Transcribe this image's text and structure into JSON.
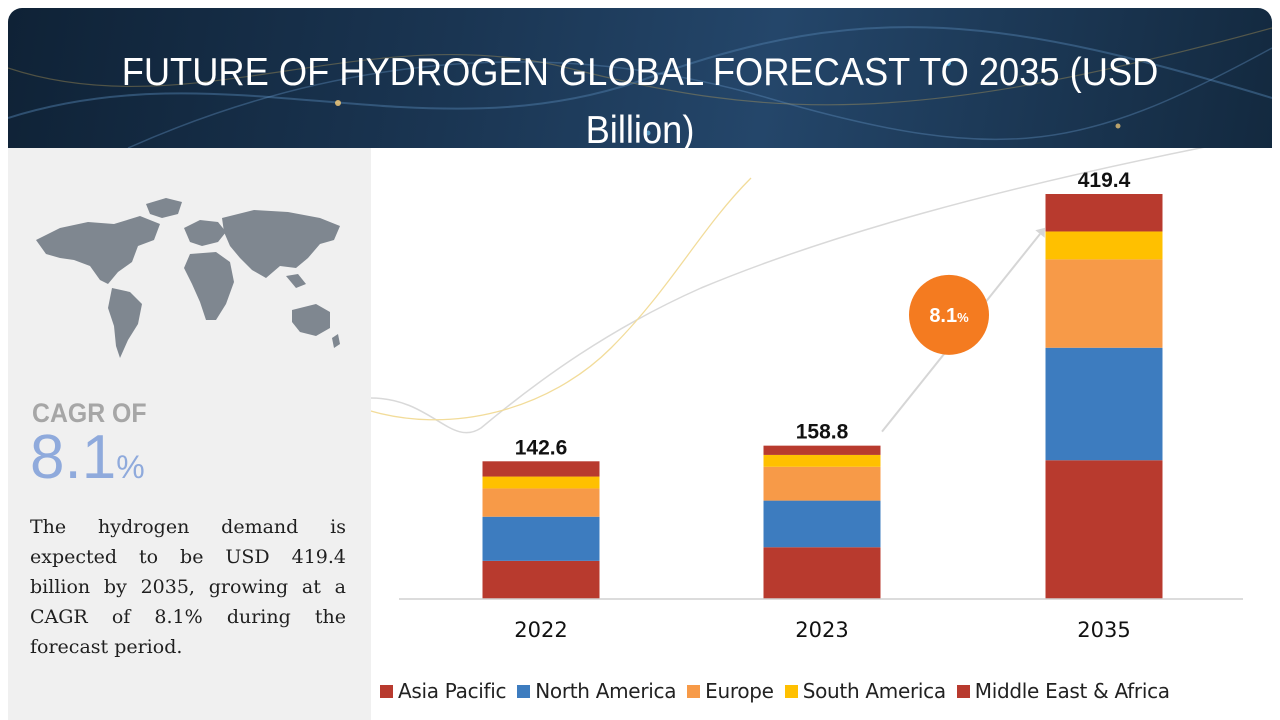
{
  "header": {
    "title": "FUTURE OF HYDROGEN GLOBAL FORECAST TO 2035 (USD Billion)"
  },
  "left_panel": {
    "cagr_label": "CAGR OF",
    "cagr_value": "8.1",
    "cagr_unit": "%",
    "summary": "The hydrogen demand is expected to be USD 419.4 billion by 2035, growing at a CAGR of 8.1% during the forecast period."
  },
  "chart_data": {
    "type": "bar",
    "stacked": true,
    "title": "FUTURE OF HYDROGEN GLOBAL FORECAST TO 2035 (USD Billion)",
    "categories": [
      "2022",
      "2023",
      "2035"
    ],
    "totals": [
      142.6,
      158.8,
      419.4
    ],
    "total_labels": [
      "142.6",
      "158.8",
      "419.4"
    ],
    "series": [
      {
        "name": "Asia Pacific",
        "color": "#b83a2e",
        "values": [
          39.5,
          53.6,
          143.7
        ]
      },
      {
        "name": "North America",
        "color": "#3d7cbf",
        "values": [
          45.7,
          48.3,
          116.5
        ]
      },
      {
        "name": "Europe",
        "color": "#f79a48",
        "values": [
          29.3,
          35.0,
          91.5
        ]
      },
      {
        "name": "South America",
        "color": "#ffc000",
        "values": [
          12.3,
          12.3,
          28.9
        ]
      },
      {
        "name": "Middle East & Africa",
        "color": "#b83a2e",
        "values": [
          15.8,
          9.6,
          38.8
        ]
      }
    ],
    "annotation": {
      "text": "8.1",
      "unit": "%",
      "color": "#f47b20"
    },
    "grid": false,
    "legend": "bottom",
    "xlabel": "",
    "ylabel": ""
  },
  "colors": {
    "banner": "#1a3552",
    "cagr_accent": "#8faadc",
    "annotation": "#f47b20"
  }
}
